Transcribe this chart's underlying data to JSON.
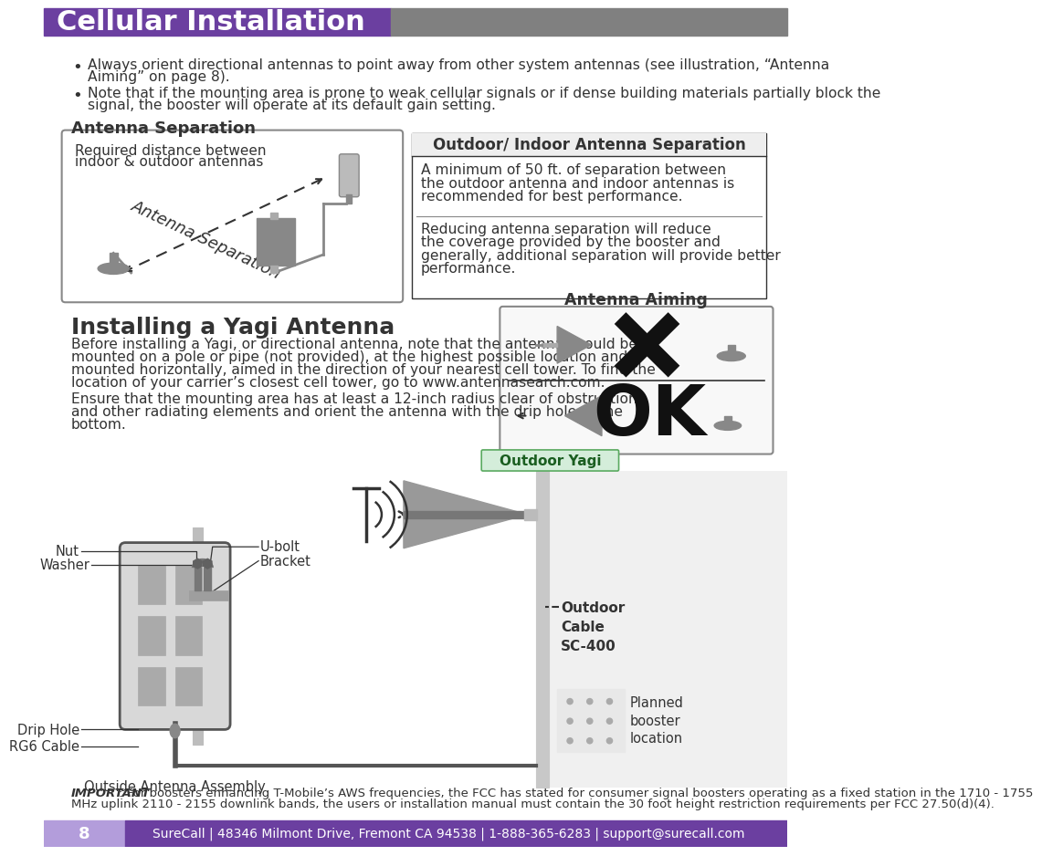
{
  "title": "Cellular Installation",
  "title_bg_color": "#6b3fa0",
  "title_gray_color": "#808080",
  "title_text_color": "#ffffff",
  "page_bg_color": "#ffffff",
  "footer_bg_left": "#b39ddb",
  "footer_bg_right": "#6b3fa0",
  "footer_text_color": "#ffffff",
  "footer_page": "8",
  "footer_info": "SureCall | 48346 Milmont Drive, Fremont CA 94538 | 1-888-365-6283 | support@surecall.com",
  "b1_line1": "Always orient directional antennas to point away from other system antennas (see illustration, “Antenna",
  "b1_line2": "Aiming” on page 8).",
  "b2_line1": "Note that if the mounting area is prone to weak cellular signals or if dense building materials partially block the",
  "b2_line2": "signal, the booster will operate at its default gain setting.",
  "section1_title": "Antenna Separation",
  "diagram_label_line1": "Required distance between",
  "diagram_label_line2": "indoor & outdoor antennas",
  "diagram_watermark": "Antenna Separation",
  "table_header": "Outdoor/ Indoor Antenna Separation",
  "table_p1_l1": "A minimum of 50 ft. of separation between",
  "table_p1_l2": "the outdoor antenna and indoor antennas is",
  "table_p1_l3": "recommended for best performance.",
  "table_p2_l1": "Reducing antenna separation will reduce",
  "table_p2_l2": "the coverage provided by the booster and",
  "table_p2_l3": "generally, additional separation will provide better",
  "table_p2_l4": "performance.",
  "section2_title": "Installing a Yagi Antenna",
  "s2p1_l1": "Before installing a Yagi, or directional antenna, note that the antenna should be",
  "s2p1_l2": "mounted on a pole or pipe (not provided), at the highest possible location and",
  "s2p1_l3": "mounted horizontally, aimed in the direction of your nearest cell tower. To find the",
  "s2p1_l4": "location of your carrier’s closest cell tower, go to www.antennasearch.com.",
  "s2p2_l1": "Ensure that the mounting area has at least a 12-inch radius clear of obstructions",
  "s2p2_l2": "and other radiating elements and orient the antenna with the drip hole at the",
  "s2p2_l3": "bottom.",
  "aiming_title": "Antenna Aiming",
  "imp_bold": "IMPORTANT",
  "imp_rest_l1": ": For boosters enhancing T-Mobile’s AWS frequencies, the FCC has stated for consumer signal boosters operating as a fixed station in the 1710 - 1755",
  "imp_rest_l2": "MHz uplink 2110 - 2155 downlink bands, the users or installation manual must contain the 30 foot height restriction requirements per FCC 27.50(d)(4).",
  "label_nut": "Nut",
  "label_washer": "Washer",
  "label_ubolt": "U-bolt",
  "label_bracket": "Bracket",
  "label_drip": "Drip Hole",
  "label_rg6": "RG6 Cable",
  "label_outside": "Outside Antenna Assembly",
  "label_outdoor_yagi": "Outdoor Yagi",
  "label_outdoor_cable_bold": "Outdoor\nCable\nSC-400",
  "label_planned": "Planned\nbooster\nlocation",
  "purple": "#6b3fa0",
  "light_purple": "#b39ddb",
  "dark_gray": "#333333",
  "medium_gray": "#888888",
  "light_gray": "#cccccc",
  "box_border": "#888888",
  "antenna_gray": "#888888",
  "antenna_light": "#bbbbbb",
  "yagi_fill": "#999999"
}
